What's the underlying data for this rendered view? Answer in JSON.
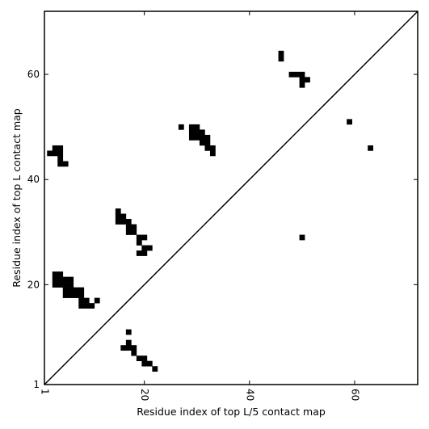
{
  "chart_data": {
    "type": "heatmap",
    "title": "",
    "xlabel": "Residue index of top L/5 contact map",
    "ylabel": "Residue index of top L contact map",
    "xlim": [
      1,
      72
    ],
    "ylim": [
      1,
      72
    ],
    "xticks": [
      1,
      20,
      40,
      60
    ],
    "yticks": [
      1,
      20,
      40,
      60
    ],
    "xtick_labels": [
      "1",
      "20",
      "40",
      "60"
    ],
    "ytick_labels": [
      "1",
      "20",
      "40",
      "60"
    ],
    "x_tick_rotation": -90,
    "diagonal": true,
    "grid": false,
    "cell_color": "#000000",
    "contacts_upper": [
      [
        2,
        45
      ],
      [
        3,
        45
      ],
      [
        4,
        45
      ],
      [
        3,
        46
      ],
      [
        4,
        46
      ],
      [
        4,
        44
      ],
      [
        4,
        43
      ],
      [
        5,
        43
      ],
      [
        3,
        22
      ],
      [
        4,
        22
      ],
      [
        3,
        21
      ],
      [
        4,
        21
      ],
      [
        5,
        21
      ],
      [
        6,
        21
      ],
      [
        3,
        20
      ],
      [
        4,
        20
      ],
      [
        5,
        20
      ],
      [
        6,
        20
      ],
      [
        5,
        19
      ],
      [
        6,
        19
      ],
      [
        7,
        19
      ],
      [
        8,
        19
      ],
      [
        5,
        18
      ],
      [
        6,
        18
      ],
      [
        7,
        18
      ],
      [
        8,
        18
      ],
      [
        8,
        17
      ],
      [
        9,
        17
      ],
      [
        11,
        17
      ],
      [
        8,
        16
      ],
      [
        9,
        16
      ],
      [
        10,
        16
      ],
      [
        15,
        34
      ],
      [
        15,
        33
      ],
      [
        16,
        33
      ],
      [
        15,
        32
      ],
      [
        16,
        32
      ],
      [
        17,
        32
      ],
      [
        17,
        31
      ],
      [
        18,
        31
      ],
      [
        17,
        30
      ],
      [
        18,
        30
      ],
      [
        19,
        29
      ],
      [
        20,
        29
      ],
      [
        19,
        28
      ],
      [
        20,
        27
      ],
      [
        21,
        27
      ],
      [
        19,
        26
      ],
      [
        20,
        26
      ],
      [
        27,
        50
      ],
      [
        29,
        50
      ],
      [
        30,
        50
      ],
      [
        29,
        49
      ],
      [
        30,
        49
      ],
      [
        31,
        49
      ],
      [
        29,
        48
      ],
      [
        30,
        48
      ],
      [
        31,
        48
      ],
      [
        32,
        48
      ],
      [
        31,
        47
      ],
      [
        32,
        47
      ],
      [
        32,
        46
      ],
      [
        33,
        46
      ],
      [
        33,
        45
      ],
      [
        46,
        64
      ],
      [
        46,
        63
      ],
      [
        48,
        60
      ],
      [
        49,
        60
      ],
      [
        50,
        60
      ],
      [
        50,
        59
      ],
      [
        51,
        59
      ],
      [
        50,
        58
      ],
      [
        59,
        51
      ],
      [
        63,
        46
      ],
      [
        50,
        29
      ]
    ],
    "contacts_lower": [
      [
        17,
        11
      ],
      [
        17,
        9
      ],
      [
        16,
        8
      ],
      [
        17,
        8
      ],
      [
        18,
        8
      ],
      [
        18,
        7
      ],
      [
        19,
        6
      ],
      [
        20,
        6
      ],
      [
        20,
        5
      ],
      [
        21,
        5
      ],
      [
        22,
        4
      ]
    ]
  }
}
